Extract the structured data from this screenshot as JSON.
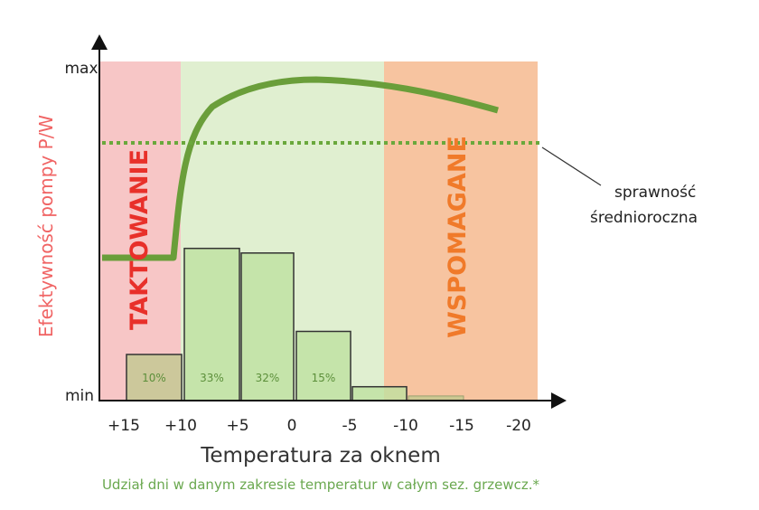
{
  "chart_data": {
    "type": "bar",
    "xlabel": "Temperatura za oknem",
    "ylabel": "Efektywność pompy P/W",
    "y_top_label": "max",
    "y_bottom_label": "min",
    "x_ticks": [
      "+15",
      "+10",
      "+5",
      "0",
      "-5",
      "-10",
      "-15",
      "-20"
    ],
    "bars": {
      "values": [
        10,
        33,
        32,
        15,
        3,
        1
      ],
      "labels": [
        "10%",
        "33%",
        "32%",
        "15%",
        "",
        ""
      ]
    },
    "zones": [
      {
        "label": "TAKTOWANIE",
        "color": "#f7c6c6",
        "text_color": "#e8302a"
      },
      {
        "label": "",
        "color": "#e0efd0"
      },
      {
        "label": "WSPOMAGANE",
        "color": "#f7c4a0",
        "text_color": "#f07a2a"
      }
    ],
    "average_line": {
      "label_line1": "sprawność",
      "label_line2": "średnioroczna",
      "color": "#6aa83c"
    },
    "curve_color": "#6a9e3a",
    "footnote": "Udział dni w danym zakresie temperatur w całym sez. grzewcz.*"
  }
}
